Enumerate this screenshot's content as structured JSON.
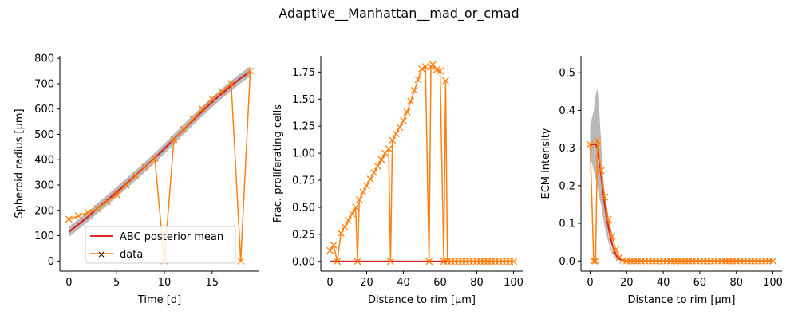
{
  "figure": {
    "title": "Adaptive__Manhattan__mad_or_cmad"
  },
  "colors": {
    "posterior_mean": "#d62728",
    "data": "#ff7f0e",
    "samples": "#7f7f7f"
  },
  "chart_data": [
    {
      "type": "line",
      "xlabel": "Time [d]",
      "ylabel": "Spheroid radius [μm]",
      "xlim": [
        -0.95,
        19.95
      ],
      "ylim": [
        -40,
        810
      ],
      "xticks": [
        0,
        5,
        10,
        15
      ],
      "yticks": [
        0,
        100,
        200,
        300,
        400,
        500,
        600,
        700,
        800
      ],
      "grid": false,
      "legend": {
        "location": "lower-center",
        "entries": [
          "ABC posterior mean",
          "data"
        ]
      },
      "series": [
        {
          "name": "ABC posterior mean",
          "x": [
            0,
            1,
            2,
            3,
            4,
            5,
            6,
            7,
            8,
            9,
            10,
            11,
            12,
            13,
            14,
            15,
            16,
            17,
            18,
            19
          ],
          "values": [
            115,
            145,
            175,
            208,
            240,
            272,
            305,
            338,
            372,
            407,
            443,
            481,
            519,
            556,
            592,
            627,
            660,
            692,
            722,
            748
          ]
        },
        {
          "name": "data",
          "x": [
            0,
            1,
            2,
            3,
            4,
            5,
            6,
            7,
            8,
            9,
            10,
            11,
            12,
            13,
            14,
            15,
            16,
            17,
            18,
            19
          ],
          "values": [
            165,
            178,
            192,
            207,
            235,
            262,
            300,
            335,
            370,
            405,
            0,
            480,
            520,
            560,
            600,
            640,
            670,
            700,
            0,
            750
          ]
        }
      ],
      "band_lower": [
        95,
        125,
        155,
        188,
        220,
        252,
        285,
        318,
        352,
        387,
        423,
        461,
        499,
        536,
        572,
        607,
        640,
        672,
        702,
        728
      ],
      "band_upper": [
        135,
        165,
        195,
        228,
        260,
        292,
        325,
        358,
        392,
        427,
        463,
        501,
        539,
        576,
        612,
        647,
        680,
        712,
        742,
        768
      ]
    },
    {
      "type": "line",
      "xlabel": "Distance to rim [μm]",
      "ylabel": "Frac. proliferating cells",
      "xlim": [
        -5,
        105
      ],
      "ylim": [
        -0.09,
        1.9
      ],
      "xticks": [
        0,
        20,
        40,
        60,
        80,
        100
      ],
      "yticks": [
        0.0,
        0.25,
        0.5,
        0.75,
        1.0,
        1.25,
        1.5,
        1.75
      ],
      "grid": false,
      "series": [
        {
          "name": "ABC posterior mean",
          "x": [
            0,
            100
          ],
          "values": [
            0.0,
            0.0
          ]
        },
        {
          "name": "data",
          "x": [
            0,
            2,
            4,
            6,
            8,
            10,
            12,
            14,
            15,
            16,
            18,
            20,
            22,
            24,
            26,
            28,
            30,
            32,
            33,
            34,
            36,
            38,
            40,
            42,
            44,
            46,
            48,
            50,
            52,
            54,
            55,
            56,
            58,
            60,
            62,
            63,
            64,
            66,
            68,
            70,
            72,
            74,
            76,
            78,
            80,
            82,
            84,
            86,
            88,
            90,
            92,
            94,
            96,
            98,
            100
          ],
          "values": [
            0.1,
            0.15,
            0.0,
            0.26,
            0.32,
            0.38,
            0.44,
            0.5,
            0.0,
            0.57,
            0.64,
            0.7,
            0.76,
            0.82,
            0.88,
            0.94,
            1.0,
            1.04,
            0.0,
            1.12,
            1.18,
            1.24,
            1.3,
            1.38,
            1.48,
            1.58,
            1.68,
            1.78,
            1.8,
            0.0,
            1.8,
            1.82,
            1.77,
            1.76,
            0.0,
            1.67,
            0.0,
            0,
            0,
            0,
            0,
            0,
            0,
            0,
            0,
            0,
            0,
            0,
            0,
            0,
            0,
            0,
            0,
            0,
            0
          ]
        }
      ]
    },
    {
      "type": "line",
      "xlabel": "Distance to rim [μm]",
      "ylabel": "ECM intensity",
      "xlim": [
        -5,
        105
      ],
      "ylim": [
        -0.027,
        0.545
      ],
      "xticks": [
        0,
        20,
        40,
        60,
        80,
        100
      ],
      "yticks": [
        0.0,
        0.1,
        0.2,
        0.3,
        0.4,
        0.5
      ],
      "grid": false,
      "series": [
        {
          "name": "ABC posterior mean",
          "x": [
            0,
            1,
            2,
            3,
            4,
            5,
            6,
            7,
            8,
            9,
            10,
            11,
            12,
            13,
            14,
            15,
            16,
            17,
            18,
            19,
            20,
            22,
            24,
            26,
            28,
            30,
            100
          ],
          "values": [
            0.31,
            0.31,
            0.31,
            0.31,
            0.3,
            0.27,
            0.23,
            0.19,
            0.15,
            0.12,
            0.09,
            0.065,
            0.045,
            0.03,
            0.018,
            0.01,
            0.006,
            0.003,
            0.002,
            0.001,
            0.0,
            0.0,
            0.0,
            0.0,
            0.0,
            0.0,
            0.0
          ]
        },
        {
          "name": "data",
          "x": [
            0,
            2,
            3,
            4,
            6,
            8,
            10,
            12,
            14,
            16,
            18,
            20,
            22,
            24,
            26,
            28,
            30,
            32,
            34,
            36,
            38,
            40,
            42,
            44,
            46,
            48,
            50,
            52,
            54,
            56,
            58,
            60,
            62,
            64,
            66,
            68,
            70,
            72,
            74,
            76,
            78,
            80,
            82,
            84,
            86,
            88,
            90,
            92,
            94,
            96,
            98,
            100
          ],
          "values": [
            0.31,
            0.0,
            0.0,
            0.32,
            0.24,
            0.17,
            0.11,
            0.065,
            0.03,
            0.01,
            0.002,
            0,
            0,
            0,
            0,
            0,
            0,
            0,
            0,
            0,
            0,
            0,
            0,
            0,
            0,
            0,
            0,
            0,
            0,
            0,
            0,
            0,
            0,
            0,
            0,
            0,
            0,
            0,
            0,
            0,
            0,
            0,
            0,
            0,
            0,
            0,
            0,
            0,
            0,
            0,
            0,
            0
          ]
        }
      ],
      "band_upper": [
        0.36,
        0.38,
        0.4,
        0.44,
        0.46,
        0.4,
        0.32,
        0.24,
        0.17,
        0.11,
        0.07,
        0.045,
        0.03,
        0.02,
        0.012,
        0.007,
        0.004,
        0.002,
        0.001,
        0.0,
        0.0,
        0.0,
        0.0,
        0.0,
        0.0,
        0.0,
        0.0
      ],
      "band_lower": [
        0.27,
        0.26,
        0.24,
        0.22,
        0.2,
        0.17,
        0.15,
        0.12,
        0.09,
        0.07,
        0.05,
        0.035,
        0.02,
        0.012,
        0.006,
        0.003,
        0.0015,
        0.0005,
        0.0,
        0.0,
        0.0,
        0.0,
        0.0,
        0.0,
        0.0,
        0.0,
        0.0
      ]
    }
  ]
}
